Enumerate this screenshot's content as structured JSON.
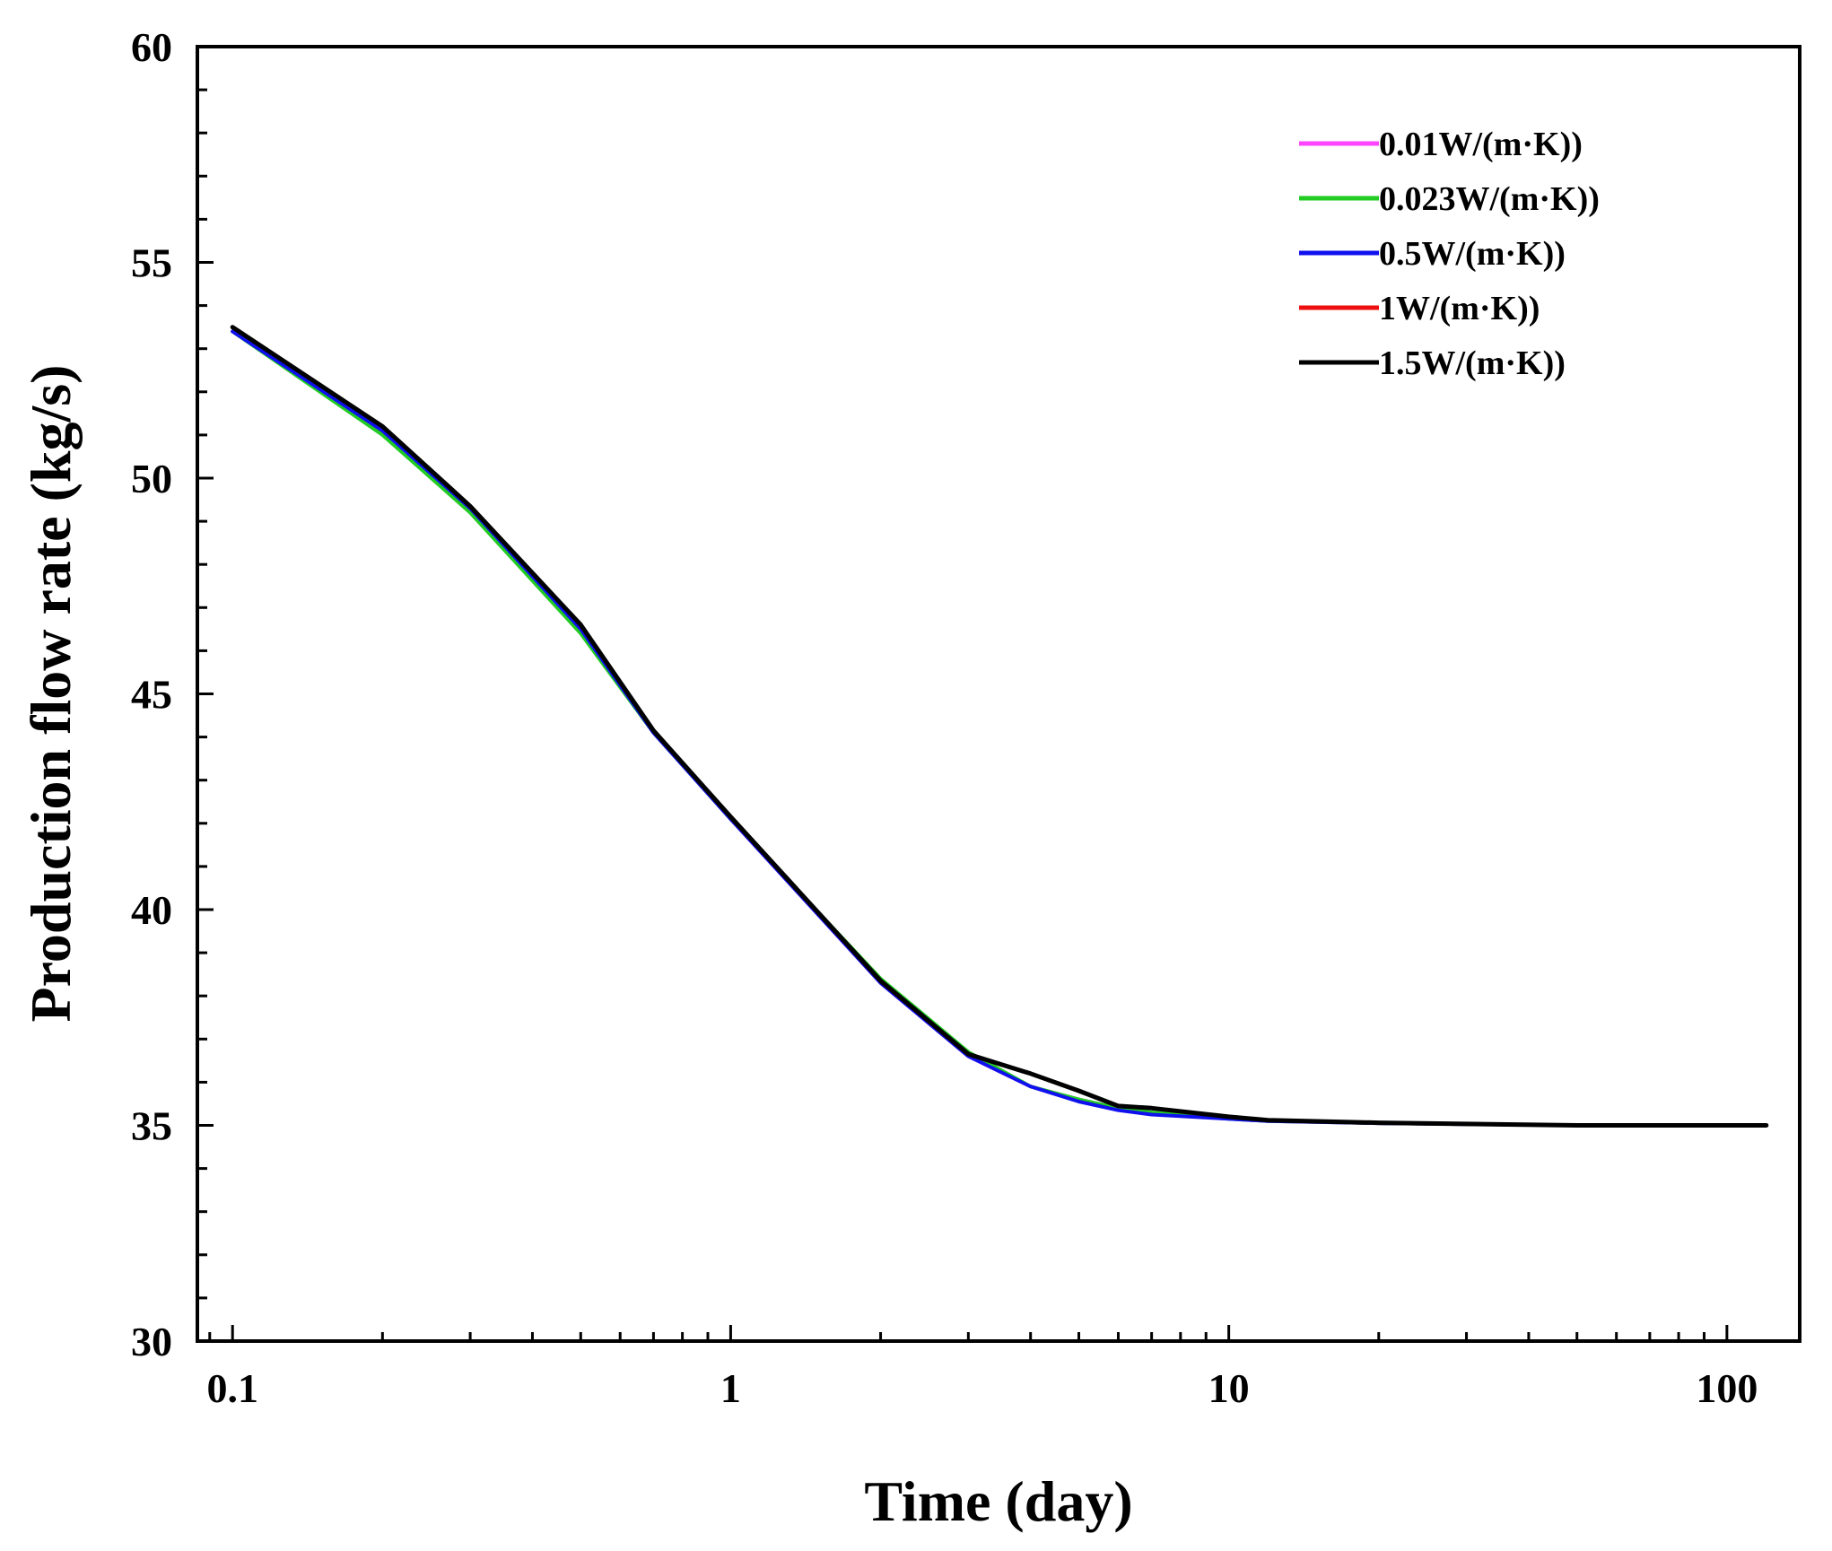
{
  "chart_data": {
    "type": "line",
    "title": "",
    "xlabel": "Time (day)",
    "ylabel": "Production flow rate (kg/s)",
    "xscale": "log",
    "xlim": [
      0.085,
      140
    ],
    "ylim": [
      30,
      60
    ],
    "xticks": [
      {
        "value": 0.1,
        "label": "0.1"
      },
      {
        "value": 1,
        "label": "1"
      },
      {
        "value": 10,
        "label": "10"
      },
      {
        "value": 100,
        "label": "100"
      }
    ],
    "yticks": [
      {
        "value": 30,
        "label": "30"
      },
      {
        "value": 35,
        "label": "35"
      },
      {
        "value": 40,
        "label": "40"
      },
      {
        "value": 45,
        "label": "45"
      },
      {
        "value": 50,
        "label": "50"
      },
      {
        "value": 55,
        "label": "55"
      },
      {
        "value": 60,
        "label": "60"
      }
    ],
    "legend_position": "top-right",
    "series": [
      {
        "name": "0.01W/(m·K))",
        "color": "#ff44ff",
        "x": [
          0.1,
          0.2,
          0.3,
          0.5,
          0.7,
          1,
          2,
          3,
          4,
          5,
          6,
          7,
          10,
          12,
          20,
          50,
          120
        ],
        "y": [
          53.4,
          51.1,
          49.3,
          46.5,
          44.1,
          42.1,
          38.3,
          36.6,
          35.9,
          35.6,
          35.4,
          35.3,
          35.15,
          35.1,
          35.05,
          35.0,
          35.0
        ]
      },
      {
        "name": "0.023W/(m·K))",
        "color": "#22cc22",
        "x": [
          0.1,
          0.2,
          0.3,
          0.5,
          0.7,
          1,
          2,
          3,
          4,
          5,
          6,
          7,
          10,
          12,
          20,
          50,
          120
        ],
        "y": [
          53.4,
          51.0,
          49.2,
          46.4,
          44.1,
          42.1,
          38.4,
          36.7,
          35.9,
          35.6,
          35.4,
          35.3,
          35.15,
          35.1,
          35.05,
          35.0,
          35.0
        ]
      },
      {
        "name": "0.5W/(m·K))",
        "color": "#1010ee",
        "x": [
          0.1,
          0.2,
          0.3,
          0.5,
          0.7,
          1,
          2,
          3,
          4,
          5,
          6,
          7,
          10,
          12,
          20,
          50,
          120
        ],
        "y": [
          53.4,
          51.1,
          49.3,
          46.5,
          44.1,
          42.1,
          38.3,
          36.6,
          35.9,
          35.55,
          35.35,
          35.25,
          35.15,
          35.1,
          35.05,
          35.0,
          35.0
        ]
      },
      {
        "name": "1W/(m·K))",
        "color": "#ee1010",
        "x": [
          0.1,
          0.2,
          0.3,
          0.5,
          0.7,
          1,
          2,
          3,
          4,
          5,
          6,
          7,
          10,
          12,
          20,
          50,
          120
        ],
        "y": [
          53.5,
          51.2,
          49.35,
          46.6,
          44.15,
          42.15,
          38.35,
          36.65,
          36.2,
          35.8,
          35.45,
          35.4,
          35.2,
          35.12,
          35.06,
          35.0,
          35.0
        ]
      },
      {
        "name": "1.5W/(m·K))",
        "color": "#000000",
        "x": [
          0.1,
          0.2,
          0.3,
          0.5,
          0.7,
          1,
          2,
          3,
          4,
          5,
          6,
          7,
          10,
          12,
          20,
          50,
          120
        ],
        "y": [
          53.5,
          51.2,
          49.35,
          46.6,
          44.15,
          42.15,
          38.35,
          36.65,
          36.2,
          35.8,
          35.45,
          35.4,
          35.2,
          35.12,
          35.06,
          35.0,
          35.0
        ]
      }
    ]
  }
}
